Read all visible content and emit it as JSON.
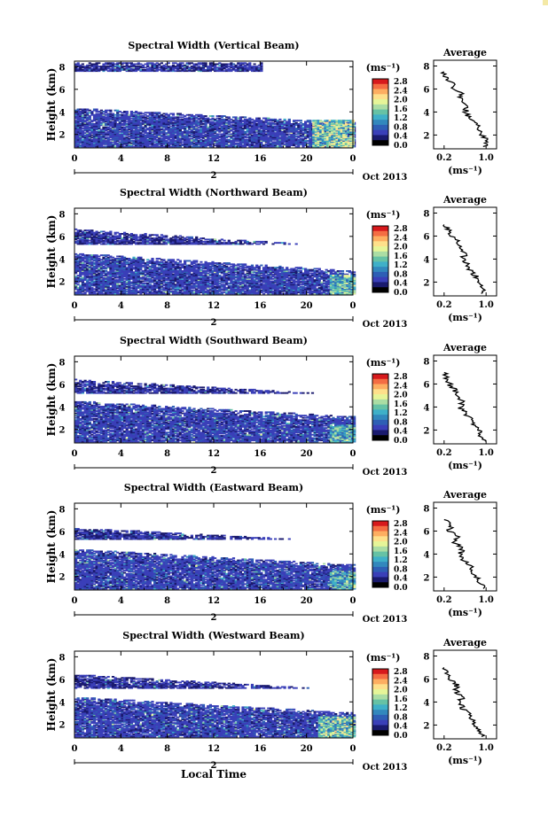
{
  "figure": {
    "xaxis_title": "Local Time",
    "ylabel": "Height (km)",
    "date_label": "Oct 2013",
    "day_label": "2",
    "colorbar_unit": "(ms⁻¹)",
    "colorbar_ticks": [
      "2.8",
      "2.4",
      "2.0",
      "1.6",
      "1.2",
      "0.8",
      "0.4",
      "0.0"
    ],
    "colorbar_colors": [
      "#d7191c",
      "#f46d43",
      "#fdae61",
      "#fee08b",
      "#e6f598",
      "#abdda4",
      "#66c2a5",
      "#3fb0c8",
      "#3288bd",
      "#2e5fb5",
      "#3a3fb8",
      "#1a1a6e",
      "#000000"
    ],
    "x_ticks": [
      "0",
      "4",
      "8",
      "12",
      "16",
      "20",
      "0"
    ],
    "y_ticks": [
      "2",
      "4",
      "6",
      "8"
    ],
    "avg_title": "Average",
    "avg_xunit": "(ms⁻¹)",
    "avg_y_ticks": [
      "2",
      "4",
      "6",
      "8"
    ]
  },
  "chart_data": [
    {
      "type": "heatmap",
      "title": "Spectral Width (Vertical Beam)",
      "xlabel": "Local Time",
      "ylabel": "Height (km)",
      "xlim": [
        0,
        24
      ],
      "ylim": [
        0.8,
        8.5
      ],
      "colorbar_range": [
        0.0,
        2.8
      ],
      "layers": [
        {
          "t0": 0,
          "t1": 24,
          "h_top0": 4.3,
          "h_top1": 3.0,
          "h_bot": 0.9,
          "level": 0.35
        },
        {
          "t0": 0,
          "t1": 16,
          "h_top0": 8.3,
          "h_top1": 8.3,
          "h_bot": 7.6,
          "level": 0.25
        }
      ],
      "hot_region": {
        "t0": 20.5,
        "t1": 24,
        "h0": 0.9,
        "h1": 3.3,
        "level": 1.6
      },
      "average_panel": {
        "title": "Average",
        "xlabel": "(ms⁻¹)",
        "x_ticks": [
          "0.2",
          "1.0"
        ],
        "xlim": [
          0.0,
          1.2
        ],
        "ylim": [
          0.8,
          8.5
        ],
        "profile": [
          [
            0.95,
            1.0
          ],
          [
            1.05,
            1.5
          ],
          [
            0.9,
            2.0
          ],
          [
            0.85,
            2.5
          ],
          [
            0.8,
            3.0
          ],
          [
            0.7,
            3.5
          ],
          [
            0.6,
            4.0
          ],
          [
            0.65,
            4.5
          ],
          [
            0.5,
            5.0
          ],
          [
            0.55,
            5.5
          ],
          [
            0.4,
            6.0
          ],
          [
            0.35,
            6.5
          ],
          [
            0.25,
            7.0
          ],
          [
            0.2,
            7.5
          ]
        ]
      }
    },
    {
      "type": "heatmap",
      "title": "Spectral Width (Northward Beam)",
      "xlabel": "Local Time",
      "ylabel": "Height (km)",
      "xlim": [
        0,
        24
      ],
      "ylim": [
        0.8,
        8.5
      ],
      "colorbar_range": [
        0.0,
        2.8
      ],
      "layers": [
        {
          "t0": 0,
          "t1": 24,
          "h_top0": 4.5,
          "h_top1": 2.9,
          "h_bot": 0.9,
          "level": 0.35
        },
        {
          "t0": 0,
          "t1": 24,
          "h_top0": 6.6,
          "h_top1": 5.0,
          "h_bot": 5.3,
          "level": 0.25
        }
      ],
      "hot_region": {
        "t0": 22,
        "t1": 24,
        "h0": 0.9,
        "h1": 2.6,
        "level": 1.4
      },
      "average_panel": {
        "title": "Average",
        "xlabel": "(ms⁻¹)",
        "x_ticks": [
          "0.2",
          "1.0"
        ],
        "xlim": [
          0.0,
          1.2
        ],
        "ylim": [
          0.8,
          8.5
        ],
        "profile": [
          [
            0.95,
            1.0
          ],
          [
            0.9,
            1.5
          ],
          [
            0.85,
            2.0
          ],
          [
            0.8,
            2.5
          ],
          [
            0.7,
            3.0
          ],
          [
            0.65,
            3.5
          ],
          [
            0.55,
            4.0
          ],
          [
            0.6,
            4.5
          ],
          [
            0.5,
            5.0
          ],
          [
            0.45,
            5.5
          ],
          [
            0.35,
            6.0
          ],
          [
            0.3,
            6.5
          ],
          [
            0.2,
            7.0
          ]
        ]
      }
    },
    {
      "type": "heatmap",
      "title": "Spectral Width (Southward Beam)",
      "xlabel": "Local Time",
      "ylabel": "Height (km)",
      "xlim": [
        0,
        24
      ],
      "ylim": [
        0.8,
        8.5
      ],
      "colorbar_range": [
        0.0,
        2.8
      ],
      "layers": [
        {
          "t0": 0,
          "t1": 24,
          "h_top0": 4.5,
          "h_top1": 3.1,
          "h_bot": 0.9,
          "level": 0.35
        },
        {
          "t0": 0,
          "t1": 24,
          "h_top0": 6.4,
          "h_top1": 5.0,
          "h_bot": 5.2,
          "level": 0.25
        }
      ],
      "hot_region": {
        "t0": 22,
        "t1": 24,
        "h0": 0.9,
        "h1": 2.4,
        "level": 1.3
      },
      "average_panel": {
        "title": "Average",
        "xlabel": "(ms⁻¹)",
        "x_ticks": [
          "0.2",
          "1.0"
        ],
        "xlim": [
          0.0,
          1.2
        ],
        "ylim": [
          0.8,
          8.5
        ],
        "profile": [
          [
            1.0,
            1.0
          ],
          [
            0.9,
            1.5
          ],
          [
            0.85,
            2.0
          ],
          [
            0.75,
            2.5
          ],
          [
            0.7,
            3.0
          ],
          [
            0.6,
            3.5
          ],
          [
            0.5,
            4.0
          ],
          [
            0.55,
            4.5
          ],
          [
            0.45,
            5.0
          ],
          [
            0.4,
            5.5
          ],
          [
            0.3,
            6.0
          ],
          [
            0.25,
            6.5
          ],
          [
            0.2,
            7.0
          ]
        ]
      }
    },
    {
      "type": "heatmap",
      "title": "Spectral Width (Eastward Beam)",
      "xlabel": "Local Time",
      "ylabel": "Height (km)",
      "xlim": [
        0,
        24
      ],
      "ylim": [
        0.8,
        8.5
      ],
      "colorbar_range": [
        0.0,
        2.8
      ],
      "layers": [
        {
          "t0": 0,
          "t1": 24,
          "h_top0": 4.4,
          "h_top1": 3.0,
          "h_bot": 0.9,
          "level": 0.35
        },
        {
          "t0": 0,
          "t1": 24,
          "h_top0": 6.3,
          "h_top1": 5.0,
          "h_bot": 5.3,
          "level": 0.25
        }
      ],
      "hot_region": {
        "t0": 22,
        "t1": 24,
        "h0": 0.9,
        "h1": 2.5,
        "level": 1.3
      },
      "average_panel": {
        "title": "Average",
        "xlabel": "(ms⁻¹)",
        "x_ticks": [
          "0.2",
          "1.0"
        ],
        "xlim": [
          0.0,
          1.2
        ],
        "ylim": [
          0.8,
          8.5
        ],
        "profile": [
          [
            0.95,
            1.0
          ],
          [
            0.9,
            1.5
          ],
          [
            0.8,
            2.0
          ],
          [
            0.75,
            2.5
          ],
          [
            0.7,
            3.0
          ],
          [
            0.55,
            3.5
          ],
          [
            0.5,
            4.0
          ],
          [
            0.55,
            4.5
          ],
          [
            0.4,
            5.0
          ],
          [
            0.45,
            5.5
          ],
          [
            0.3,
            6.0
          ],
          [
            0.35,
            6.5
          ],
          [
            0.2,
            7.0
          ]
        ]
      }
    },
    {
      "type": "heatmap",
      "title": "Spectral Width (Westward Beam)",
      "xlabel": "Local Time",
      "ylabel": "Height (km)",
      "xlim": [
        0,
        24
      ],
      "ylim": [
        0.8,
        8.5
      ],
      "colorbar_range": [
        0.0,
        2.8
      ],
      "layers": [
        {
          "t0": 0,
          "t1": 24,
          "h_top0": 4.4,
          "h_top1": 3.0,
          "h_bot": 0.9,
          "level": 0.35
        },
        {
          "t0": 0,
          "t1": 24,
          "h_top0": 6.4,
          "h_top1": 5.0,
          "h_bot": 5.2,
          "level": 0.25
        }
      ],
      "hot_region": {
        "t0": 21,
        "t1": 24,
        "h0": 0.9,
        "h1": 2.7,
        "level": 1.5
      },
      "average_panel": {
        "title": "Average",
        "xlabel": "(ms⁻¹)",
        "x_ticks": [
          "0.2",
          "1.0"
        ],
        "xlim": [
          0.0,
          1.2
        ],
        "ylim": [
          0.8,
          8.5
        ],
        "profile": [
          [
            0.95,
            1.0
          ],
          [
            0.85,
            1.5
          ],
          [
            0.8,
            2.0
          ],
          [
            0.75,
            2.5
          ],
          [
            0.65,
            3.0
          ],
          [
            0.55,
            3.5
          ],
          [
            0.5,
            4.0
          ],
          [
            0.55,
            4.5
          ],
          [
            0.4,
            5.0
          ],
          [
            0.45,
            5.5
          ],
          [
            0.3,
            6.0
          ],
          [
            0.25,
            6.5
          ],
          [
            0.2,
            7.0
          ]
        ]
      }
    }
  ]
}
